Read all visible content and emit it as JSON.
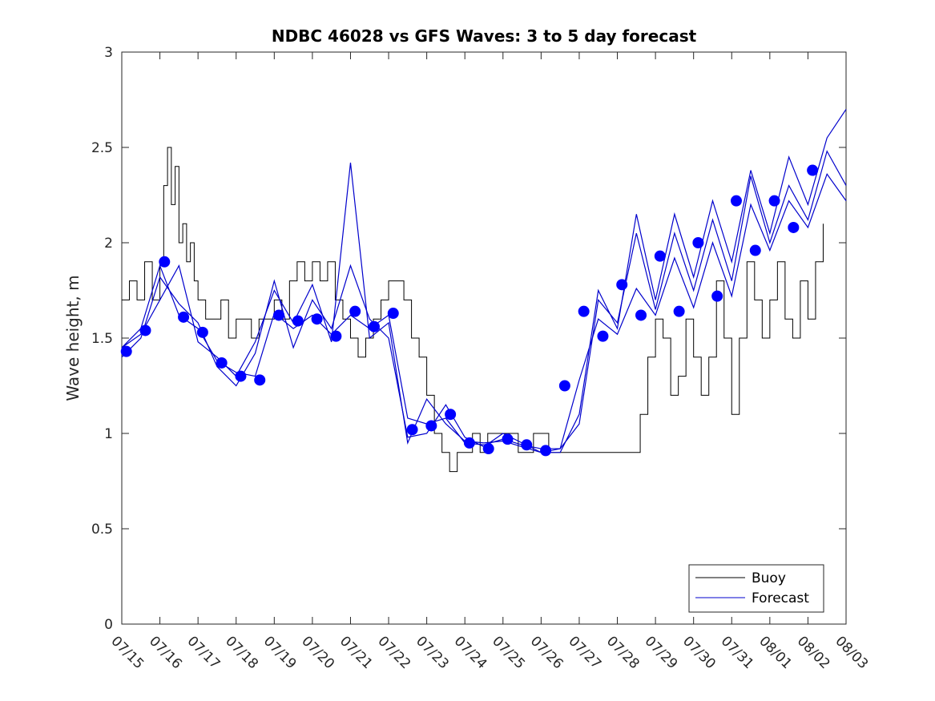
{
  "chart_data": {
    "type": "line",
    "title": "NDBC 46028 vs GFS Waves: 3 to 5 day forecast",
    "xlabel": "",
    "ylabel": "Wave height, m",
    "x_tick_labels": [
      "07/15",
      "07/16",
      "07/17",
      "07/18",
      "07/19",
      "07/20",
      "07/21",
      "07/22",
      "07/23",
      "07/24",
      "07/25",
      "07/26",
      "07/27",
      "07/28",
      "07/29",
      "07/30",
      "07/31",
      "08/01",
      "08/02",
      "08/03"
    ],
    "xlim": [
      0,
      19
    ],
    "ylim": [
      0,
      3
    ],
    "y_ticks": [
      0,
      0.5,
      1,
      1.5,
      2,
      2.5,
      3
    ],
    "y_tick_labels": [
      "0",
      "0.5",
      "1",
      "1.5",
      "2",
      "2.5",
      "3"
    ],
    "legend": {
      "position": "bottom-right",
      "entries": [
        "Buoy",
        "Forecast"
      ]
    },
    "colors": {
      "buoy": "#000000",
      "forecast": "#0000cc",
      "markers": "#0000ff"
    },
    "series": [
      {
        "name": "Buoy",
        "x": [
          0,
          0.2,
          0.4,
          0.6,
          0.8,
          1.0,
          1.1,
          1.2,
          1.3,
          1.4,
          1.5,
          1.6,
          1.7,
          1.8,
          1.9,
          2.0,
          2.2,
          2.4,
          2.6,
          2.8,
          3.0,
          3.2,
          3.4,
          3.6,
          3.8,
          4.0,
          4.2,
          4.4,
          4.6,
          4.8,
          5.0,
          5.2,
          5.4,
          5.6,
          5.8,
          6.0,
          6.2,
          6.4,
          6.6,
          6.8,
          7.0,
          7.2,
          7.4,
          7.6,
          7.8,
          8.0,
          8.2,
          8.4,
          8.6,
          8.8,
          9.0,
          9.2,
          9.4,
          9.6,
          9.8,
          10.0,
          10.2,
          10.4,
          10.6,
          10.8,
          11.0,
          11.2,
          11.4,
          11.6,
          11.8,
          12.0,
          12.2,
          12.4,
          12.6,
          12.8,
          13.0,
          13.2,
          13.4,
          13.6,
          13.8,
          14.0,
          14.2,
          14.4,
          14.6,
          14.8,
          15.0,
          15.2,
          15.4,
          15.6,
          15.8,
          16.0,
          16.2,
          16.4,
          16.6,
          16.8,
          17.0,
          17.2,
          17.4,
          17.6,
          17.8,
          18.0,
          18.2,
          18.4
        ],
        "y": [
          1.7,
          1.8,
          1.7,
          1.9,
          1.7,
          1.9,
          2.3,
          2.5,
          2.2,
          2.4,
          2.0,
          2.1,
          1.9,
          2.0,
          1.8,
          1.7,
          1.6,
          1.6,
          1.7,
          1.5,
          1.6,
          1.6,
          1.5,
          1.6,
          1.6,
          1.7,
          1.6,
          1.8,
          1.9,
          1.8,
          1.9,
          1.8,
          1.9,
          1.7,
          1.6,
          1.5,
          1.4,
          1.5,
          1.6,
          1.7,
          1.8,
          1.8,
          1.7,
          1.5,
          1.4,
          1.2,
          1.0,
          0.9,
          0.8,
          0.9,
          0.9,
          1.0,
          0.9,
          1.0,
          1.0,
          1.0,
          1.0,
          0.9,
          0.9,
          1.0,
          1.0,
          0.9,
          0.9,
          0.9,
          0.9,
          0.9,
          0.9,
          0.9,
          0.9,
          0.9,
          0.9,
          0.9,
          0.9,
          1.1,
          1.4,
          1.6,
          1.5,
          1.2,
          1.3,
          1.6,
          1.4,
          1.2,
          1.4,
          1.8,
          1.5,
          1.1,
          1.5,
          1.9,
          1.7,
          1.5,
          1.7,
          1.9,
          1.6,
          1.5,
          1.8,
          1.6,
          1.9,
          2.1
        ]
      },
      {
        "name": "Forecast",
        "runs": [
          {
            "x": [
              0.0,
              0.5,
              1.0,
              1.5,
              2.0,
              2.5,
              3.0,
              3.5,
              4.0,
              4.5,
              5.0,
              5.5,
              6.0,
              6.5,
              7.0,
              7.5,
              8.0,
              8.5,
              9.0,
              9.5,
              10.0,
              10.5,
              11.0,
              11.5,
              12.0,
              12.5,
              13.0,
              13.5,
              14.0,
              14.5,
              15.0,
              15.5,
              16.0,
              16.5,
              17.0,
              17.5,
              18.0,
              18.5,
              19.0
            ],
            "y": [
              1.45,
              1.55,
              1.88,
              1.62,
              1.55,
              1.38,
              1.32,
              1.3,
              1.63,
              1.55,
              1.62,
              1.52,
              1.62,
              1.55,
              1.62,
              1.08,
              1.05,
              1.08,
              0.95,
              0.94,
              0.97,
              0.94,
              0.92,
              0.92,
              1.28,
              1.6,
              1.52,
              1.76,
              1.62,
              1.92,
              1.66,
              2.0,
              1.72,
              2.2,
              1.96,
              2.22,
              2.08,
              2.36,
              2.22
            ]
          },
          {
            "x": [
              0.0,
              0.5,
              1.0,
              1.5,
              2.0,
              2.5,
              3.0,
              3.5,
              4.0,
              4.5,
              5.0,
              5.5,
              6.0,
              6.5,
              7.0,
              7.5,
              8.0,
              8.5,
              9.0,
              9.5,
              10.0,
              10.5,
              11.0,
              11.5,
              12.0,
              12.5,
              13.0,
              13.5,
              14.0,
              14.5,
              15.0,
              15.5,
              16.0,
              16.5,
              17.0,
              17.5,
              18.0,
              18.5,
              19.0
            ],
            "y": [
              1.4,
              1.5,
              1.82,
              1.68,
              1.58,
              1.35,
              1.25,
              1.42,
              1.8,
              1.45,
              1.7,
              1.55,
              1.88,
              1.6,
              1.5,
              0.98,
              1.0,
              1.15,
              0.98,
              0.93,
              1.0,
              0.95,
              0.9,
              0.92,
              1.05,
              1.7,
              1.58,
              2.05,
              1.65,
              2.05,
              1.75,
              2.12,
              1.8,
              2.35,
              2.0,
              2.3,
              2.12,
              2.48,
              2.3
            ]
          },
          {
            "x": [
              0.0,
              0.5,
              1.0,
              1.5,
              2.0,
              2.5,
              3.0,
              3.5,
              4.0,
              4.5,
              5.0,
              5.5,
              6.0,
              6.5,
              7.0,
              7.5,
              8.0,
              8.5,
              9.0,
              9.5,
              10.0,
              10.5,
              11.0,
              11.5,
              12.0,
              12.5,
              13.0,
              13.5,
              14.0,
              14.5,
              15.0,
              15.5,
              16.0,
              16.5,
              17.0,
              17.5,
              18.0,
              18.5,
              19.0
            ],
            "y": [
              1.45,
              1.52,
              1.7,
              1.88,
              1.48,
              1.4,
              1.3,
              1.48,
              1.75,
              1.58,
              1.78,
              1.48,
              2.42,
              1.5,
              1.58,
              0.95,
              1.18,
              1.05,
              0.96,
              0.95,
              0.96,
              0.93,
              0.9,
              0.9,
              1.1,
              1.75,
              1.55,
              2.15,
              1.7,
              2.15,
              1.82,
              2.22,
              1.9,
              2.38,
              2.05,
              2.45,
              2.2,
              2.55,
              2.7
            ]
          }
        ],
        "markers_x": [
          0.12,
          0.62,
          1.12,
          1.62,
          2.12,
          2.62,
          3.12,
          3.62,
          4.12,
          4.62,
          5.12,
          5.62,
          6.12,
          6.62,
          7.12,
          7.62,
          8.12,
          8.62,
          9.12,
          9.62,
          10.12,
          10.62,
          11.12,
          11.62,
          12.12,
          12.62,
          13.12,
          13.62,
          14.12,
          14.62,
          15.12,
          15.62,
          16.12,
          16.62,
          17.12,
          17.62,
          18.12
        ],
        "markers_y": [
          1.43,
          1.54,
          1.9,
          1.61,
          1.53,
          1.37,
          1.3,
          1.28,
          1.62,
          1.59,
          1.6,
          1.51,
          1.64,
          1.56,
          1.63,
          1.02,
          1.04,
          1.1,
          0.95,
          0.92,
          0.97,
          0.94,
          0.91,
          1.25,
          1.64,
          1.51,
          1.78,
          1.62,
          1.93,
          1.64,
          2.0,
          1.72,
          2.22,
          1.96,
          2.22,
          2.08,
          2.38
        ]
      }
    ]
  }
}
